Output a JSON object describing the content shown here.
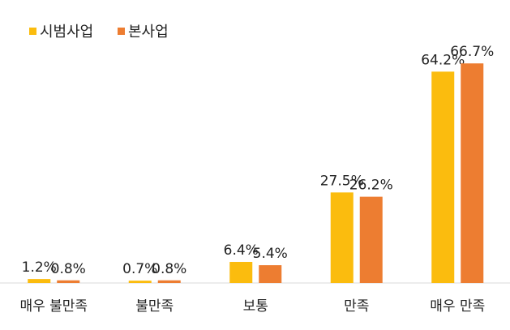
{
  "chart_data": {
    "type": "bar",
    "categories": [
      "매우 불만족",
      "불만족",
      "보통",
      "만족",
      "매우 만족"
    ],
    "series": [
      {
        "name": "시범사업",
        "color": "#fbbc0e",
        "values": [
          1.2,
          0.7,
          6.4,
          27.5,
          64.2
        ],
        "value_labels": [
          "1.2%",
          "0.7%",
          "6.4%",
          "27.5%",
          "64.2%"
        ]
      },
      {
        "name": "본사업",
        "color": "#ed7d31",
        "values": [
          0.8,
          0.8,
          5.4,
          26.2,
          66.7
        ],
        "value_labels": [
          "0.8%",
          "0.8%",
          "5.4%",
          "26.2%",
          "66.7%"
        ]
      }
    ],
    "legend": "top-left"
  }
}
